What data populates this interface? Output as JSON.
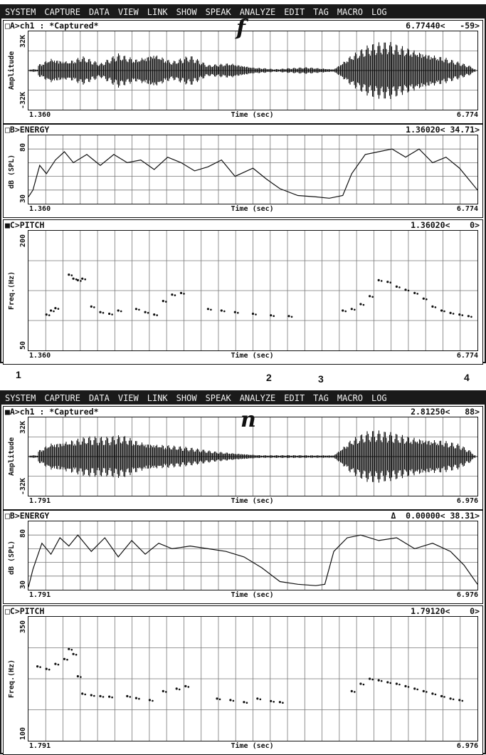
{
  "menu": [
    "SYSTEM",
    "CAPTURE",
    "DATA",
    "VIEW",
    "LINK",
    "SHOW",
    "SPEAK",
    "ANALYZE",
    "EDIT",
    "TAG",
    "MACRO",
    "LOG"
  ],
  "screens": [
    {
      "marker": "f",
      "panels": [
        {
          "kind": "amplitude",
          "title": "□A>ch1 : *Captured*",
          "readout": "6.77440<   -59>",
          "ylabel": "Amplitude",
          "ymax": "32K",
          "ymin": "-32K",
          "xstart": "1.360",
          "xend": "6.774",
          "xlabel": "Time (sec)"
        },
        {
          "kind": "energy",
          "title": "□B>ENERGY",
          "readout": "1.36020< 34.71>",
          "ylabel": "dB (SPL)",
          "ymax": "80",
          "ymin": "30",
          "xstart": "1.360",
          "xend": "6.774",
          "xlabel": "Time (sec)",
          "energy_curve": [
            [
              0,
              35
            ],
            [
              0.01,
              40
            ],
            [
              0.025,
              58
            ],
            [
              0.04,
              52
            ],
            [
              0.06,
              62
            ],
            [
              0.08,
              68
            ],
            [
              0.1,
              60
            ],
            [
              0.13,
              66
            ],
            [
              0.16,
              58
            ],
            [
              0.19,
              66
            ],
            [
              0.22,
              60
            ],
            [
              0.25,
              62
            ],
            [
              0.28,
              55
            ],
            [
              0.31,
              64
            ],
            [
              0.34,
              60
            ],
            [
              0.37,
              54
            ],
            [
              0.4,
              57
            ],
            [
              0.43,
              62
            ],
            [
              0.46,
              50
            ],
            [
              0.5,
              56
            ],
            [
              0.53,
              48
            ],
            [
              0.56,
              41
            ],
            [
              0.6,
              36
            ],
            [
              0.64,
              35
            ],
            [
              0.67,
              34
            ],
            [
              0.7,
              36
            ],
            [
              0.72,
              52
            ],
            [
              0.75,
              66
            ],
            [
              0.78,
              68
            ],
            [
              0.81,
              70
            ],
            [
              0.84,
              64
            ],
            [
              0.87,
              70
            ],
            [
              0.9,
              60
            ],
            [
              0.93,
              64
            ],
            [
              0.96,
              56
            ],
            [
              1,
              40
            ]
          ]
        },
        {
          "kind": "pitch",
          "title": "■C>PITCH",
          "readout": "1.36020<    0>",
          "ylabel": "Freq.(Hz)",
          "ymax": "200",
          "ymin": "50",
          "xstart": "1.360",
          "xend": "6.774",
          "xlabel": "Time (sec)",
          "pitch_segments": [
            [
              [
                0.04,
                95
              ],
              [
                0.05,
                100
              ],
              [
                0.06,
                103
              ]
            ],
            [
              [
                0.09,
                145
              ],
              [
                0.1,
                140
              ],
              [
                0.11,
                138
              ],
              [
                0.12,
                140
              ]
            ],
            [
              [
                0.14,
                105
              ],
              [
                0.16,
                98
              ],
              [
                0.18,
                96
              ],
              [
                0.2,
                100
              ]
            ],
            [
              [
                0.24,
                102
              ],
              [
                0.26,
                98
              ],
              [
                0.28,
                95
              ],
              [
                0.3,
                112
              ],
              [
                0.32,
                120
              ],
              [
                0.34,
                122
              ]
            ],
            [
              [
                0.4,
                102
              ],
              [
                0.43,
                100
              ],
              [
                0.46,
                98
              ],
              [
                0.5,
                96
              ],
              [
                0.54,
                94
              ],
              [
                0.58,
                93
              ]
            ],
            [
              [
                0.7,
                100
              ],
              [
                0.72,
                102
              ],
              [
                0.74,
                108
              ],
              [
                0.76,
                118
              ],
              [
                0.78,
                138
              ],
              [
                0.8,
                136
              ],
              [
                0.82,
                130
              ],
              [
                0.84,
                126
              ],
              [
                0.86,
                122
              ],
              [
                0.88,
                115
              ],
              [
                0.9,
                105
              ],
              [
                0.92,
                100
              ],
              [
                0.94,
                97
              ],
              [
                0.96,
                95
              ],
              [
                0.98,
                93
              ]
            ]
          ]
        }
      ]
    },
    {
      "marker": "n",
      "panels": [
        {
          "kind": "amplitude",
          "title": "■A>ch1 : *Captured*",
          "readout": "2.81250<   88>",
          "ylabel": "Amplitude",
          "ymax": "32K",
          "ymin": "-32K",
          "xstart": "1.791",
          "xend": "6.976",
          "xlabel": "Time (sec)"
        },
        {
          "kind": "energy",
          "title": "□B>ENERGY",
          "readout": "Δ  0.00000< 38.31>",
          "ylabel": "dB (SPL)",
          "ymax": "80",
          "ymin": "30",
          "xstart": "1.791",
          "xend": "6.976",
          "xlabel": "Time (sec)",
          "energy_curve": [
            [
              0,
              32
            ],
            [
              0.01,
              45
            ],
            [
              0.03,
              64
            ],
            [
              0.05,
              56
            ],
            [
              0.07,
              68
            ],
            [
              0.09,
              62
            ],
            [
              0.11,
              70
            ],
            [
              0.14,
              58
            ],
            [
              0.17,
              68
            ],
            [
              0.2,
              54
            ],
            [
              0.23,
              66
            ],
            [
              0.26,
              56
            ],
            [
              0.29,
              64
            ],
            [
              0.32,
              60
            ],
            [
              0.36,
              62
            ],
            [
              0.4,
              60
            ],
            [
              0.44,
              58
            ],
            [
              0.48,
              54
            ],
            [
              0.52,
              46
            ],
            [
              0.56,
              36
            ],
            [
              0.6,
              34
            ],
            [
              0.64,
              33
            ],
            [
              0.66,
              34
            ],
            [
              0.68,
              58
            ],
            [
              0.71,
              68
            ],
            [
              0.74,
              70
            ],
            [
              0.78,
              66
            ],
            [
              0.82,
              68
            ],
            [
              0.86,
              60
            ],
            [
              0.9,
              64
            ],
            [
              0.94,
              58
            ],
            [
              0.97,
              48
            ],
            [
              1,
              34
            ]
          ]
        },
        {
          "kind": "pitch",
          "title": "□C>PITCH",
          "readout": "1.79120<    0>",
          "ylabel": "Freq.(Hz)",
          "ymax": "350",
          "ymin": "100",
          "xstart": "1.791",
          "xend": "6.976",
          "xlabel": "Time (sec)",
          "pitch_segments": [
            [
              [
                0.02,
                250
              ],
              [
                0.04,
                245
              ],
              [
                0.06,
                255
              ],
              [
                0.08,
                265
              ],
              [
                0.09,
                285
              ],
              [
                0.1,
                275
              ],
              [
                0.11,
                230
              ]
            ],
            [
              [
                0.12,
                195
              ],
              [
                0.14,
                192
              ],
              [
                0.16,
                190
              ],
              [
                0.18,
                189
              ]
            ],
            [
              [
                0.22,
                190
              ],
              [
                0.24,
                186
              ],
              [
                0.27,
                182
              ],
              [
                0.3,
                200
              ],
              [
                0.33,
                205
              ],
              [
                0.35,
                210
              ]
            ],
            [
              [
                0.42,
                185
              ],
              [
                0.45,
                182
              ],
              [
                0.48,
                178
              ],
              [
                0.51,
                185
              ],
              [
                0.54,
                180
              ],
              [
                0.56,
                178
              ]
            ],
            [
              [
                0.72,
                200
              ],
              [
                0.74,
                215
              ],
              [
                0.76,
                225
              ],
              [
                0.78,
                222
              ],
              [
                0.8,
                218
              ],
              [
                0.82,
                215
              ],
              [
                0.84,
                210
              ],
              [
                0.86,
                205
              ],
              [
                0.88,
                200
              ],
              [
                0.9,
                195
              ],
              [
                0.92,
                190
              ],
              [
                0.94,
                185
              ],
              [
                0.96,
                182
              ]
            ]
          ]
        }
      ]
    }
  ],
  "labels": {
    "n1": "1",
    "n2": "2",
    "n3": "3",
    "n4": "4"
  },
  "amplitude_env": {
    "s0": [
      [
        0.02,
        0.08
      ],
      [
        0.05,
        0.2
      ],
      [
        0.09,
        0.15
      ],
      [
        0.12,
        0.22
      ],
      [
        0.16,
        0.1
      ],
      [
        0.2,
        0.25
      ],
      [
        0.24,
        0.18
      ],
      [
        0.28,
        0.28
      ],
      [
        0.32,
        0.14
      ],
      [
        0.36,
        0.22
      ],
      [
        0.4,
        0.08
      ],
      [
        0.45,
        0.12
      ],
      [
        0.5,
        0.05
      ],
      [
        0.55,
        0.02
      ],
      [
        0.62,
        0.05
      ],
      [
        0.68,
        0.02
      ],
      [
        0.72,
        0.25
      ],
      [
        0.76,
        0.38
      ],
      [
        0.8,
        0.42
      ],
      [
        0.84,
        0.36
      ],
      [
        0.88,
        0.3
      ],
      [
        0.92,
        0.22
      ],
      [
        0.96,
        0.12
      ],
      [
        0.99,
        0.05
      ]
    ],
    "s1": [
      [
        0.02,
        0.08
      ],
      [
        0.05,
        0.22
      ],
      [
        0.09,
        0.26
      ],
      [
        0.13,
        0.3
      ],
      [
        0.17,
        0.28
      ],
      [
        0.21,
        0.32
      ],
      [
        0.25,
        0.24
      ],
      [
        0.29,
        0.2
      ],
      [
        0.33,
        0.16
      ],
      [
        0.37,
        0.12
      ],
      [
        0.41,
        0.08
      ],
      [
        0.45,
        0.06
      ],
      [
        0.52,
        0.02
      ],
      [
        0.6,
        0.02
      ],
      [
        0.68,
        0.02
      ],
      [
        0.72,
        0.28
      ],
      [
        0.76,
        0.38
      ],
      [
        0.8,
        0.36
      ],
      [
        0.84,
        0.32
      ],
      [
        0.88,
        0.3
      ],
      [
        0.92,
        0.26
      ],
      [
        0.96,
        0.18
      ],
      [
        0.99,
        0.06
      ]
    ]
  }
}
